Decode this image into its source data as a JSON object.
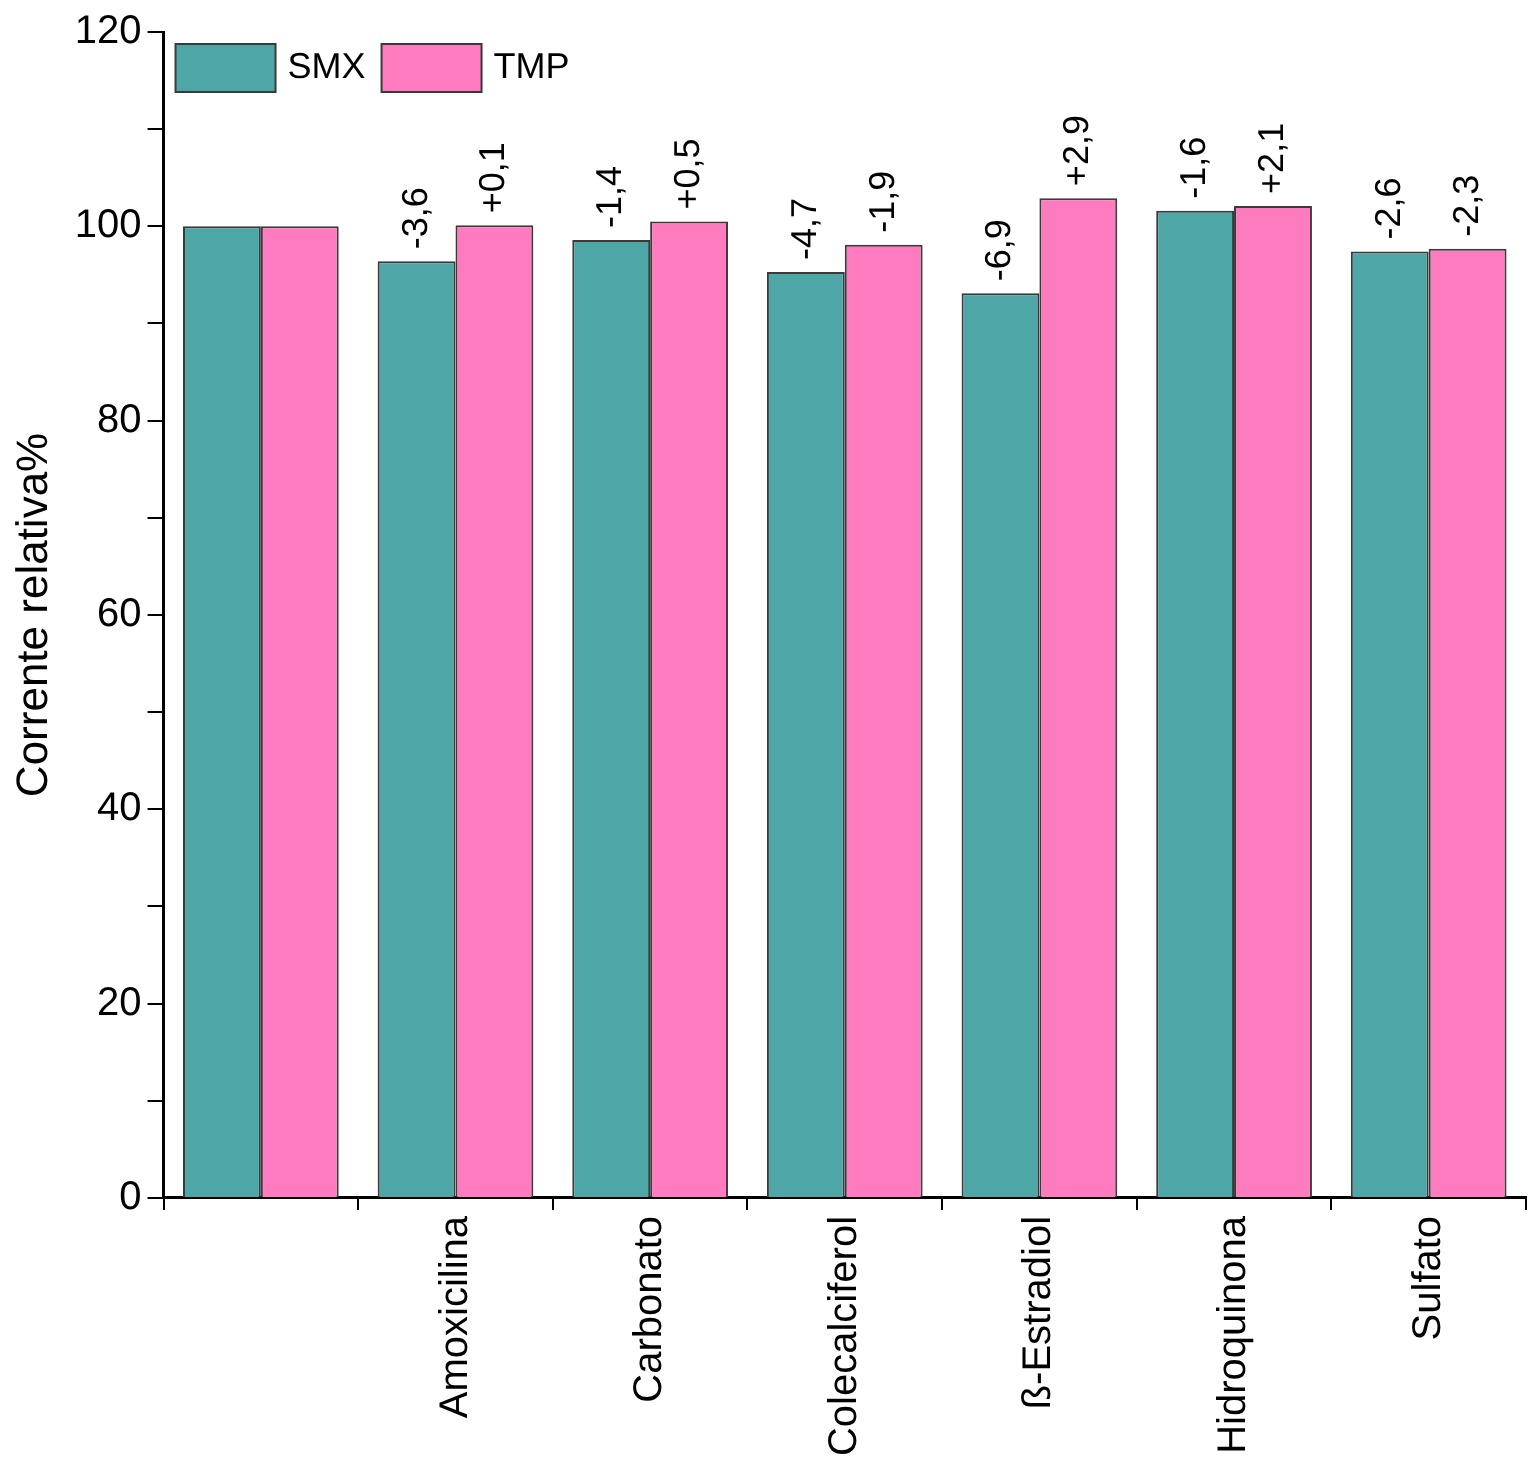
{
  "chart_data": {
    "type": "bar",
    "ylabel": "Corrente relativa%",
    "categories": [
      null,
      "Amoxicilina",
      "Carbonato",
      "Colecalciferol",
      "ß-Estradiol",
      "Hidroquinona",
      "Sulfato"
    ],
    "series": [
      {
        "name": "SMX",
        "color": "#4ea6a6",
        "values": [
          100,
          96.4,
          98.6,
          95.3,
          93.1,
          101.6,
          97.4
        ]
      },
      {
        "name": "TMP",
        "color": "#ff7bc0",
        "values": [
          100,
          100.1,
          100.5,
          98.1,
          102.9,
          102.1,
          97.7
        ]
      }
    ],
    "annotations": [
      {
        "text": "-3,6",
        "x": "Amoxicilina",
        "y": 96.4
      },
      {
        "text": "+0,1",
        "x": "Amoxicilina",
        "y": 100.1
      },
      {
        "text": "-1,4",
        "x": "Carbonato",
        "y": 98.6
      },
      {
        "text": "+0,5",
        "x": "Carbonato",
        "y": 100.5
      },
      {
        "text": "-4,7",
        "x": "Colecalciferol",
        "y": 95.3
      },
      {
        "text": "-1,9",
        "x": "Colecalciferol",
        "y": 98.1
      },
      {
        "text": "-6,9",
        "x": "ß-Estradiol",
        "y": 93.1
      },
      {
        "text": "+2,9",
        "x": "ß-Estradiol",
        "y": 102.9
      },
      {
        "text": "-1,6",
        "x": "Hidroquinona",
        "y": 101.6
      },
      {
        "text": "+2,1",
        "x": "Hidroquinona",
        "y": 102.1
      },
      {
        "text": "-2,6",
        "x": "Sulfato",
        "y": 97.4
      },
      {
        "text": "-2,3",
        "x": "Sulfato",
        "y": 97.7
      }
    ],
    "ylim": [
      0,
      120
    ],
    "yticks": [
      0,
      {
        "value": 10,
        "label": null
      },
      20,
      {
        "value": 30,
        "label": null
      },
      40,
      {
        "value": 50,
        "label": null
      },
      60,
      {
        "value": 70,
        "label": null
      },
      80,
      {
        "value": 90,
        "label": null
      },
      100,
      {
        "value": 110,
        "label": null
      },
      120
    ],
    "grid": false,
    "legend": "top left"
  }
}
